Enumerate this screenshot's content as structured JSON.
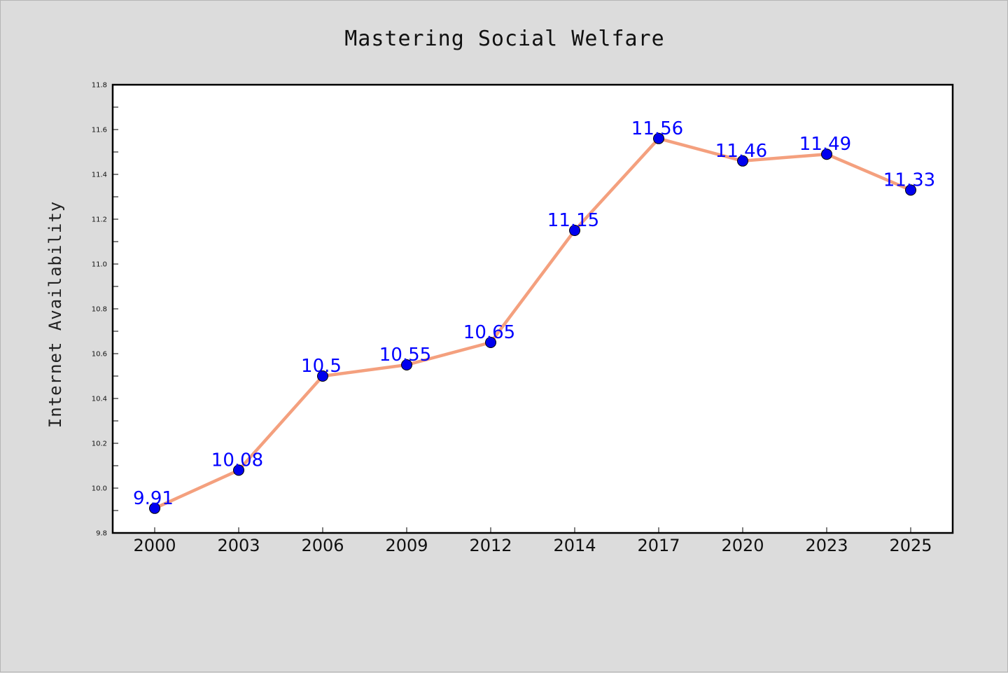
{
  "chart_data": {
    "type": "line",
    "title": "Mastering Social Welfare",
    "xlabel": "",
    "ylabel": "Internet Availability",
    "categories": [
      "2000",
      "2003",
      "2006",
      "2009",
      "2012",
      "2014",
      "2017",
      "2020",
      "2023",
      "2025"
    ],
    "series": [
      {
        "values": [
          9.91,
          10.08,
          10.5,
          10.55,
          10.65,
          11.15,
          11.56,
          11.46,
          11.49,
          11.33
        ],
        "labels": [
          "9.91",
          "10.08",
          "10.5",
          "10.55",
          "10.65",
          "11.15",
          "11.56",
          "11.46",
          "11.49",
          "11.33"
        ],
        "line_color": "#f4a07e",
        "marker_color": "#0000ee",
        "label_color": "#0000ff"
      }
    ],
    "ylim": [
      9.8,
      11.8
    ],
    "yticks": [
      "9.8",
      "10.0",
      "10.2",
      "10.4",
      "10.6",
      "10.8",
      "11.0",
      "11.2",
      "11.4",
      "11.6",
      "11.8"
    ],
    "grid": false,
    "legend": "none",
    "colors": {
      "background": "#dcdcdc",
      "plot_background": "#ffffff",
      "axis": "#000000"
    }
  }
}
